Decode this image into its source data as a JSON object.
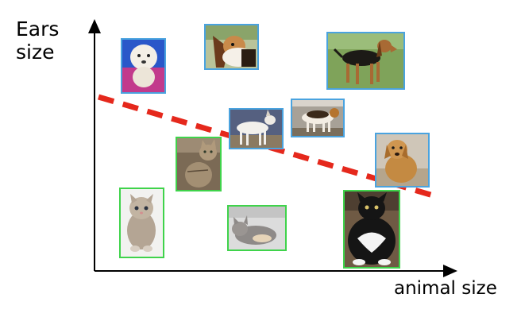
{
  "axes": {
    "y_label_line1": "Ears",
    "y_label_line2": "size",
    "x_label": "animal size"
  },
  "legend_encoding": {
    "dog_frame_color": "#4aa3df",
    "cat_frame_color": "#3fd34b",
    "boundary_color": "#e5281c"
  },
  "animals": [
    {
      "kind": "dog",
      "breed": "white poodle"
    },
    {
      "kind": "dog",
      "breed": "beagle"
    },
    {
      "kind": "dog",
      "breed": "black-and-tan hound"
    },
    {
      "kind": "dog",
      "breed": "white short-hair dog"
    },
    {
      "kind": "dog",
      "breed": "beagle standing"
    },
    {
      "kind": "dog",
      "breed": "golden retriever sitting"
    },
    {
      "kind": "cat",
      "breed": "tabby kitten"
    },
    {
      "kind": "cat",
      "breed": "fluffy kitten"
    },
    {
      "kind": "cat",
      "breed": "grey cat lying"
    },
    {
      "kind": "cat",
      "breed": "black-and-white cat"
    }
  ]
}
